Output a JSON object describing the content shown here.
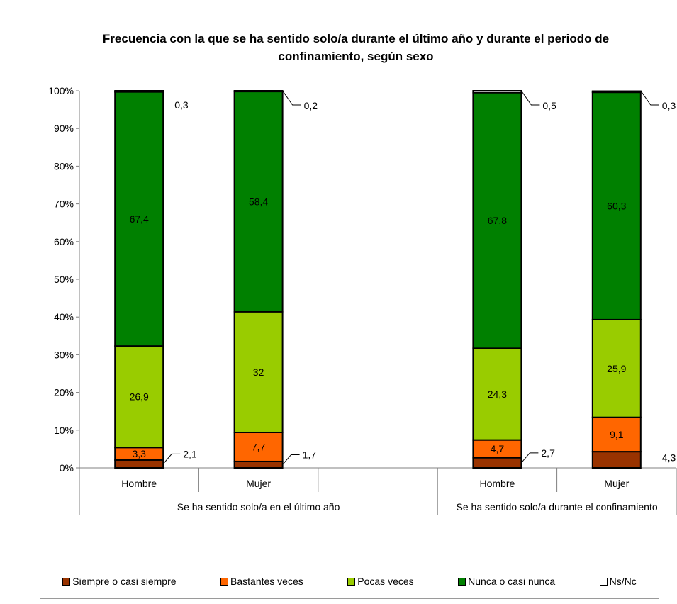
{
  "chart_data": {
    "type": "bar",
    "stacked": true,
    "title": "Frecuencia con la que se ha sentido solo/a durante el último año y durante el periodo de confinamiento, según sexo",
    "groups": [
      "Se ha sentido solo/a en el último año",
      "Se ha sentido solo/a durante el confinamiento"
    ],
    "categories": [
      "Hombre",
      "Mujer",
      "Hombre",
      "Mujer"
    ],
    "category_group": [
      0,
      0,
      1,
      1
    ],
    "y_ticks": [
      "0%",
      "10%",
      "20%",
      "30%",
      "40%",
      "50%",
      "60%",
      "70%",
      "80%",
      "90%",
      "100%"
    ],
    "ylim": [
      0,
      100
    ],
    "grid": false,
    "legend_position": "bottom",
    "series": [
      {
        "name": "Siempre o casi siempre",
        "color": "#993300",
        "values": [
          2.1,
          1.7,
          2.7,
          4.3
        ],
        "labels": [
          "2,1",
          "1,7",
          "2,7",
          "4,3"
        ]
      },
      {
        "name": "Bastantes veces",
        "color": "#ff6600",
        "values": [
          3.3,
          7.7,
          4.7,
          9.1
        ],
        "labels": [
          "3,3",
          "7,7",
          "4,7",
          "9,1"
        ]
      },
      {
        "name": "Pocas veces",
        "color": "#99cc00",
        "values": [
          26.9,
          32,
          24.3,
          25.9
        ],
        "labels": [
          "26,9",
          "32",
          "24,3",
          "25,9"
        ]
      },
      {
        "name": "Nunca o casi nunca",
        "color": "#008000",
        "values": [
          67.4,
          58.4,
          67.8,
          60.3
        ],
        "labels": [
          "67,4",
          "58,4",
          "67,8",
          "60,3"
        ]
      },
      {
        "name": "Ns/Nc",
        "color": "#ffffff",
        "values": [
          0.3,
          0.2,
          0.5,
          0.3
        ],
        "labels": [
          "0,3",
          "0,2",
          "0,5",
          "0,3"
        ]
      }
    ]
  }
}
